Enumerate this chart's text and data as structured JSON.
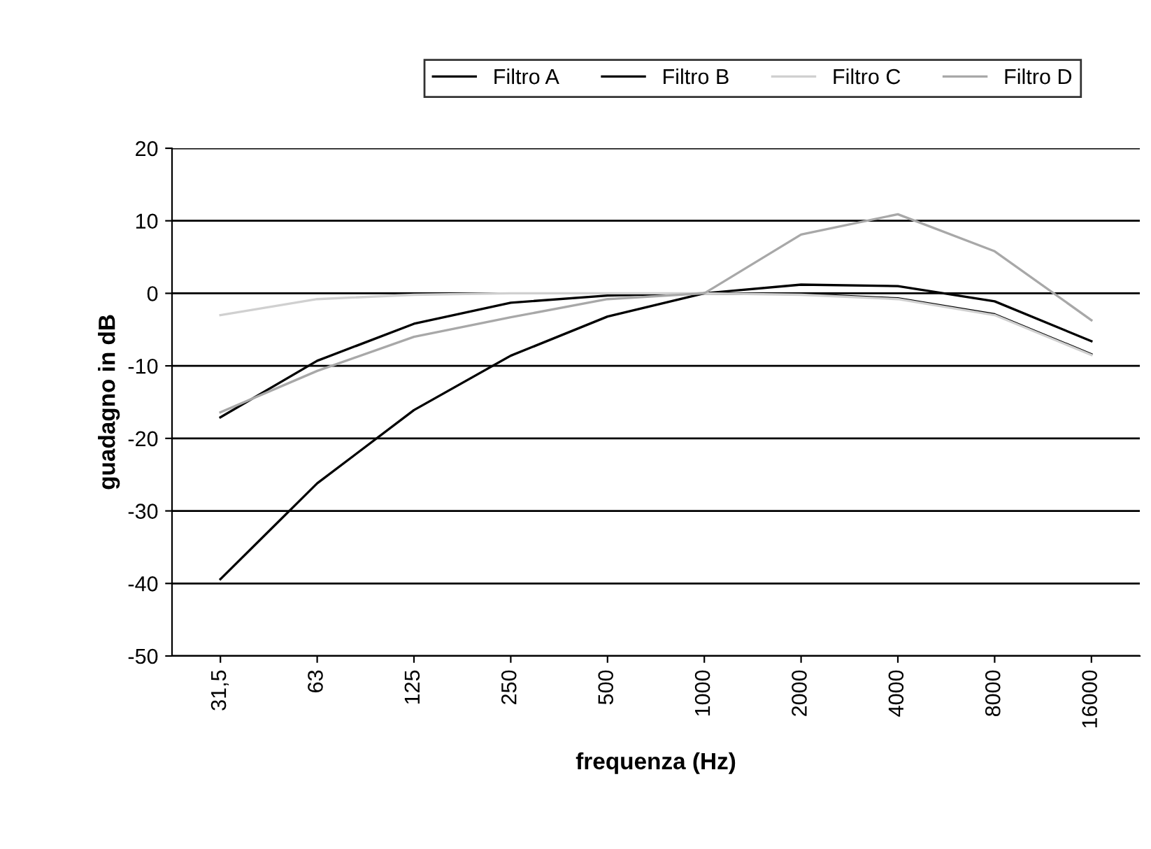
{
  "chart_data": {
    "type": "line",
    "xlabel": "frequenza (Hz)",
    "ylabel": "guadagno in dB",
    "categories": [
      "31,5",
      "63",
      "125",
      "250",
      "500",
      "1000",
      "2000",
      "4000",
      "8000",
      "16000"
    ],
    "series": [
      {
        "name": "Filtro A",
        "color": "#000000",
        "values": [
          -39.4,
          -26.2,
          -16.1,
          -8.6,
          -3.2,
          0,
          1.2,
          1.0,
          -1.1,
          -6.6
        ]
      },
      {
        "name": "Filtro B",
        "color": "#000000",
        "values": [
          -17.1,
          -9.3,
          -4.2,
          -1.3,
          -0.3,
          0,
          -0.1,
          -0.7,
          -2.9,
          -8.4
        ]
      },
      {
        "name": "Filtro C",
        "color": "#d0d0d0",
        "values": [
          -3.0,
          -0.8,
          -0.2,
          0,
          0,
          0,
          -0.2,
          -0.8,
          -3.0,
          -8.5
        ]
      },
      {
        "name": "Filtro D",
        "color": "#a8a8a8",
        "values": [
          -16.4,
          -10.7,
          -6.0,
          -3.3,
          -0.8,
          0,
          8.1,
          10.9,
          5.8,
          -3.7
        ]
      }
    ],
    "ylim": [
      -50,
      20
    ],
    "yticks": [
      -50,
      -40,
      -30,
      -20,
      -10,
      0,
      10,
      20
    ],
    "grid": "y",
    "legend": "top",
    "marker": "none",
    "line_style": "solid"
  }
}
